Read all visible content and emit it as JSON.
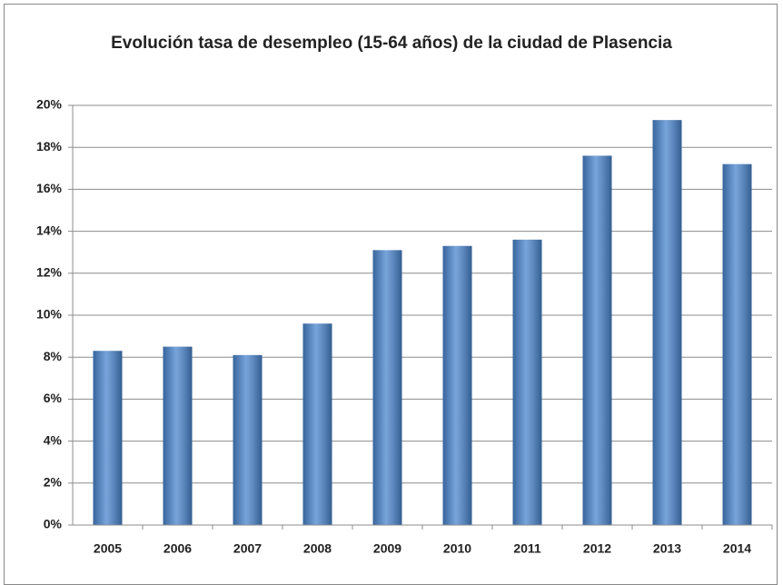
{
  "chart_data": {
    "type": "bar",
    "title": "Evolución tasa de desempleo (15-64 años) de la ciudad de Plasencia",
    "categories": [
      "2005",
      "2006",
      "2007",
      "2008",
      "2009",
      "2010",
      "2011",
      "2012",
      "2013",
      "2014"
    ],
    "values": [
      8.3,
      8.5,
      8.1,
      9.6,
      13.1,
      13.3,
      13.6,
      17.6,
      19.3,
      17.2
    ],
    "color": "#4a86cf",
    "ylim": [
      0,
      20
    ],
    "yticks": [
      {
        "value": 0,
        "label": "0%"
      },
      {
        "value": 2,
        "label": "2%"
      },
      {
        "value": 4,
        "label": "4%"
      },
      {
        "value": 6,
        "label": "6%"
      },
      {
        "value": 8,
        "label": "8%"
      },
      {
        "value": 10,
        "label": "10%"
      },
      {
        "value": 12,
        "label": "12%"
      },
      {
        "value": 14,
        "label": "14%"
      },
      {
        "value": 16,
        "label": "16%"
      },
      {
        "value": 18,
        "label": "18%"
      },
      {
        "value": 20,
        "label": "20%"
      }
    ],
    "grid": true
  }
}
